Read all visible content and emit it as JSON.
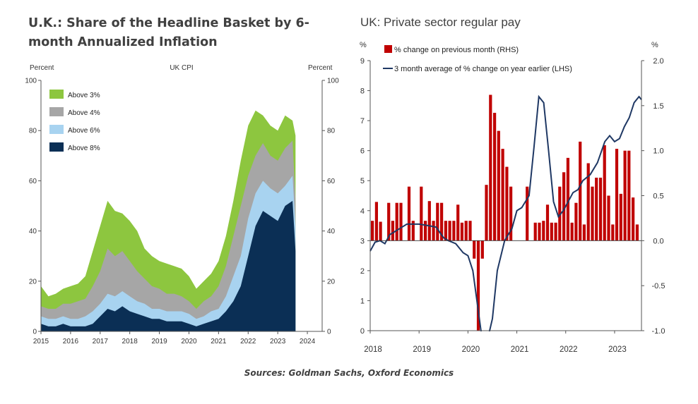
{
  "left_chart": {
    "title": "U.K.: Share of the Headline Basket by 6-month Annualized Inflation",
    "subtitle": "UK CPI",
    "ylabel_left": "Percent",
    "ylabel_right": "Percent"
  },
  "right_chart": {
    "title": "UK: Private sector regular pay",
    "ylabel_left": "%",
    "ylabel_right": "%"
  },
  "source": "Sources: Goldman Sachs, Oxford Economics",
  "colors": {
    "above3": "#8dc63f",
    "above4": "#a6a6a6",
    "above6": "#a8d3f0",
    "above8": "#0b2f55",
    "bar": "#c00000",
    "line": "#1f3864"
  },
  "chart_data": [
    {
      "type": "area",
      "title": "U.K.: Share of the Headline Basket by 6-month Annualized Inflation",
      "subtitle": "UK CPI",
      "ylabel": "Percent",
      "ylim": [
        0,
        100
      ],
      "yticks": [
        0,
        20,
        40,
        60,
        80,
        100
      ],
      "xlim": [
        2015,
        2024.5
      ],
      "xticks": [
        "2015",
        "2016",
        "2017",
        "2018",
        "2019",
        "2020",
        "2021",
        "2022",
        "2023",
        "2024"
      ],
      "legend": "top-left",
      "x": [
        2015.0,
        2015.25,
        2015.5,
        2015.75,
        2016.0,
        2016.25,
        2016.5,
        2016.75,
        2017.0,
        2017.25,
        2017.5,
        2017.75,
        2018.0,
        2018.25,
        2018.5,
        2018.75,
        2019.0,
        2019.25,
        2019.5,
        2019.75,
        2020.0,
        2020.25,
        2020.5,
        2020.75,
        2021.0,
        2021.25,
        2021.5,
        2021.75,
        2022.0,
        2022.25,
        2022.5,
        2022.75,
        2023.0,
        2023.25,
        2023.5,
        2023.6
      ],
      "series": [
        {
          "name": "Above 8%",
          "values": [
            3,
            2,
            2,
            3,
            2,
            2,
            2,
            3,
            6,
            9,
            8,
            10,
            8,
            7,
            6,
            5,
            5,
            4,
            4,
            4,
            3,
            2,
            3,
            4,
            5,
            8,
            12,
            18,
            30,
            42,
            48,
            46,
            44,
            50,
            52,
            32
          ]
        },
        {
          "name": "Above 6%",
          "values": [
            6,
            5,
            5,
            6,
            5,
            5,
            6,
            8,
            11,
            15,
            14,
            16,
            14,
            12,
            11,
            9,
            9,
            8,
            8,
            8,
            7,
            5,
            6,
            8,
            9,
            14,
            22,
            30,
            45,
            55,
            60,
            57,
            55,
            58,
            62,
            42
          ]
        },
        {
          "name": "Above 4%",
          "values": [
            10,
            9,
            9,
            11,
            11,
            12,
            13,
            18,
            24,
            33,
            30,
            32,
            28,
            24,
            21,
            18,
            17,
            15,
            15,
            14,
            12,
            9,
            12,
            14,
            18,
            26,
            38,
            50,
            62,
            70,
            75,
            70,
            68,
            73,
            76,
            52
          ]
        },
        {
          "name": "Above 3%",
          "values": [
            18,
            14,
            15,
            17,
            18,
            19,
            22,
            32,
            42,
            52,
            48,
            47,
            44,
            40,
            33,
            30,
            28,
            27,
            26,
            25,
            22,
            17,
            20,
            23,
            28,
            38,
            52,
            68,
            82,
            88,
            86,
            82,
            80,
            86,
            84,
            78
          ]
        }
      ]
    },
    {
      "type": "bar",
      "title": "UK: Private sector regular pay",
      "ylabel_left": "%",
      "ylabel_right": "%",
      "ylim_left": [
        0,
        9
      ],
      "yticks_left": [
        0,
        1,
        2,
        3,
        4,
        5,
        6,
        7,
        8,
        9
      ],
      "ylim_right": [
        -1.0,
        2.0
      ],
      "yticks_right": [
        "-1.0",
        "-0.5",
        "0.0",
        "0.5",
        "1.0",
        "1.5",
        "2.0"
      ],
      "xlim": [
        2018.0,
        2023.55
      ],
      "xticks": [
        "2018",
        "2019",
        "2020",
        "2021",
        "2022",
        "2023"
      ],
      "legend": "top-left",
      "series": [
        {
          "name": "% change on previous month (RHS)",
          "type": "bar",
          "axis": "right",
          "x": [
            2018.0,
            2018.0833,
            2018.1667,
            2018.25,
            2018.3333,
            2018.4167,
            2018.5,
            2018.5833,
            2018.6667,
            2018.75,
            2018.8333,
            2018.9167,
            2019.0,
            2019.0833,
            2019.1667,
            2019.25,
            2019.3333,
            2019.4167,
            2019.5,
            2019.5833,
            2019.6667,
            2019.75,
            2019.8333,
            2019.9167,
            2020.0,
            2020.0833,
            2020.1667,
            2020.25,
            2020.3333,
            2020.4167,
            2020.5,
            2020.5833,
            2020.6667,
            2020.75,
            2020.8333,
            2020.9167,
            2021.0,
            2021.0833,
            2021.1667,
            2021.25,
            2021.3333,
            2021.4167,
            2021.5,
            2021.5833,
            2021.6667,
            2021.75,
            2021.8333,
            2021.9167,
            2022.0,
            2022.0833,
            2022.1667,
            2022.25,
            2022.3333,
            2022.4167,
            2022.5,
            2022.5833,
            2022.6667,
            2022.75,
            2022.8333,
            2022.9167,
            2023.0,
            2023.0833,
            2023.1667,
            2023.25,
            2023.3333,
            2023.4167,
            2023.5
          ],
          "values": [
            0.22,
            0.43,
            0.21,
            0,
            0.42,
            0.22,
            0.42,
            0.42,
            0,
            0.6,
            0.22,
            0,
            0.6,
            0.22,
            0.44,
            0.22,
            0.42,
            0.42,
            0.22,
            0.22,
            0.22,
            0.4,
            0.2,
            0.22,
            0.22,
            -0.2,
            -1.0,
            -0.2,
            0.62,
            1.62,
            1.42,
            1.22,
            1.02,
            0.82,
            0.6,
            0,
            0,
            0,
            0.6,
            0,
            0.2,
            0.2,
            0.22,
            0.4,
            0.2,
            0.2,
            0.6,
            0.76,
            0.92,
            0.2,
            0.42,
            1.1,
            0.18,
            0.86,
            0.6,
            0.7,
            0.7,
            1.06,
            0.5,
            0.18,
            1.02,
            0.52,
            1.0,
            1.0,
            0.48,
            0.18,
            0
          ]
        },
        {
          "name": "3 month average of % change on year earlier (LHS)",
          "type": "line",
          "axis": "left",
          "x": [
            2018.0,
            2018.1,
            2018.2,
            2018.3,
            2018.4,
            2018.5,
            2018.6,
            2018.75,
            2018.9,
            2019.0,
            2019.2,
            2019.35,
            2019.5,
            2019.6,
            2019.75,
            2019.9,
            2020.0,
            2020.1,
            2020.2,
            2020.3,
            2020.4,
            2020.5,
            2020.6,
            2020.75,
            2020.9,
            2021.0,
            2021.1,
            2021.25,
            2021.35,
            2021.45,
            2021.55,
            2021.65,
            2021.75,
            2021.85,
            2021.95,
            2022.05,
            2022.15,
            2022.25,
            2022.35,
            2022.5,
            2022.65,
            2022.8,
            2022.9,
            2023.0,
            2023.1,
            2023.2,
            2023.3,
            2023.4,
            2023.5,
            2023.55
          ],
          "values": [
            2.65,
            2.95,
            3.0,
            2.9,
            3.2,
            3.3,
            3.4,
            3.55,
            3.55,
            3.55,
            3.5,
            3.45,
            3.1,
            3.0,
            2.9,
            2.6,
            2.5,
            2.0,
            0.8,
            -0.4,
            -0.3,
            0.4,
            2.0,
            3.0,
            3.4,
            4.0,
            4.1,
            4.5,
            6.1,
            7.8,
            7.6,
            6.0,
            4.3,
            3.8,
            4.0,
            4.3,
            4.6,
            4.7,
            5.0,
            5.2,
            5.6,
            6.3,
            6.5,
            6.3,
            6.4,
            6.8,
            7.1,
            7.6,
            7.8,
            7.7
          ]
        }
      ]
    }
  ]
}
